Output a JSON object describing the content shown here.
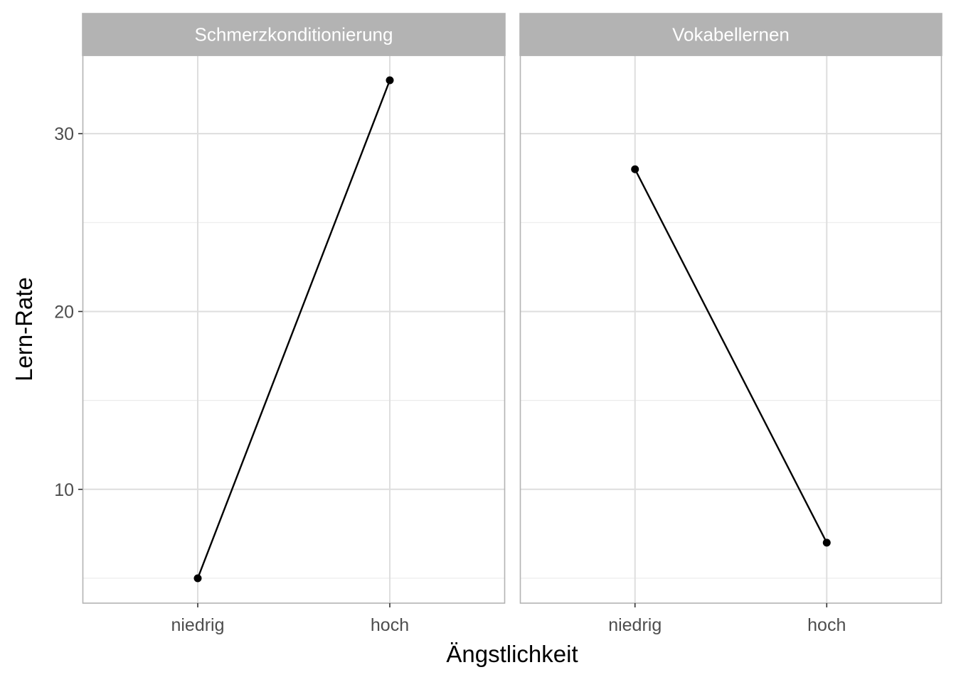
{
  "chart_data": {
    "type": "line",
    "xlabel": "Ängstlichkeit",
    "ylabel": "Lern-Rate",
    "categories": [
      "niedrig",
      "hoch"
    ],
    "ylim": [
      3.6,
      34.4
    ],
    "y_ticks": [
      10,
      20,
      30
    ],
    "y_minor_ticks": [
      5,
      15,
      25
    ],
    "grid": true,
    "line_color": "#000000",
    "strip_color": "#b3b3b3",
    "panels": [
      {
        "name": "Schmerzkonditionierung",
        "values": [
          5,
          33
        ]
      },
      {
        "name": "Vokabellernen",
        "values": [
          28,
          7
        ]
      }
    ]
  }
}
